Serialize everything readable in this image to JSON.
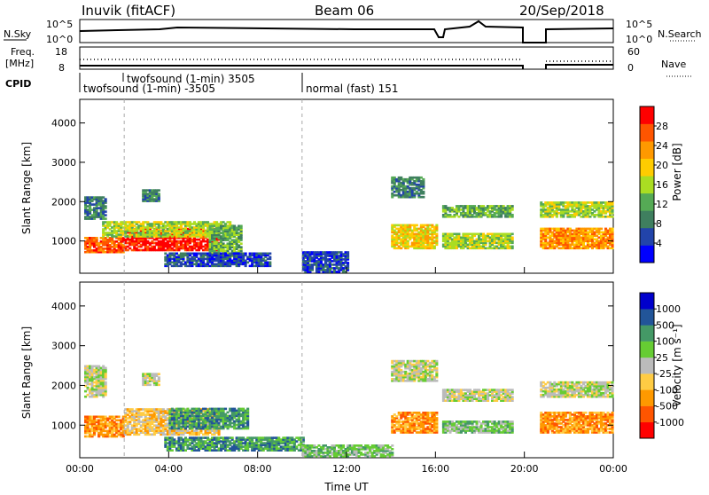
{
  "header": {
    "station": "Inuvik (fitACF)",
    "beam": "Beam 06",
    "date": "20/Sep/2018"
  },
  "mini_panels": {
    "nsky_label": "N.Sky",
    "nsky_ticks": [
      "10^5",
      "10^0"
    ],
    "nsearch_label": "N.Search",
    "freq_label_1": "Freq.",
    "freq_label_2": "[MHz]",
    "freq_ticks": [
      "18",
      "8"
    ],
    "nave_ticks": [
      "60",
      "0"
    ],
    "nave_label": "Nave",
    "cpid_label": "CPID",
    "cpid_entries": [
      "twofsound (1-min) -3505",
      "twofsound (1-min) 3505",
      "normal (fast) 151"
    ]
  },
  "colors": {
    "power": [
      "#0000ff",
      "#2244aa",
      "#3f7f5f",
      "#55aa55",
      "#aadd22",
      "#ffcc00",
      "#ff9900",
      "#ff5500",
      "#ff0000"
    ],
    "velocity": [
      "#ff0000",
      "#ff5500",
      "#ff9900",
      "#ffcc44",
      "#bbbbbb",
      "#66cc33",
      "#449966",
      "#225599",
      "#0000cc"
    ]
  },
  "chart_data": [
    {
      "type": "heatmap",
      "title": "Power",
      "ylabel": "Slant Range [km]",
      "xlabel": "",
      "x_ticks": [
        "00:00",
        "04:00",
        "08:00",
        "12:00",
        "16:00",
        "20:00",
        "00:00"
      ],
      "xlim_hours": [
        0,
        24
      ],
      "y_ticks": [
        1000,
        2000,
        3000,
        4000
      ],
      "ylim": [
        180,
        4600
      ],
      "colorbar_label": "Power [dB]",
      "colorbar_ticks": [
        "4",
        "8",
        "12",
        "16",
        "20",
        "24",
        "28"
      ],
      "regions": [
        {
          "t0": 0.2,
          "t1": 2.0,
          "r0": 700,
          "r1": 1100,
          "level": 7
        },
        {
          "t0": 2.0,
          "t1": 6.2,
          "r0": 750,
          "r1": 1300,
          "level": 8
        },
        {
          "t0": 1.0,
          "t1": 6.8,
          "r0": 1100,
          "r1": 1500,
          "level": 4
        },
        {
          "t0": 0.2,
          "t1": 1.2,
          "r0": 1550,
          "r1": 2100,
          "level": 2
        },
        {
          "t0": 2.8,
          "t1": 3.6,
          "r0": 2000,
          "r1": 2300,
          "level": 2
        },
        {
          "t0": 5.8,
          "t1": 7.2,
          "r0": 600,
          "r1": 1400,
          "level": 3
        },
        {
          "t0": 3.8,
          "t1": 8.5,
          "r0": 350,
          "r1": 700,
          "level": 1
        },
        {
          "t0": 14.0,
          "t1": 15.4,
          "r0": 2100,
          "r1": 2600,
          "level": 2
        },
        {
          "t0": 14.0,
          "t1": 16.0,
          "r0": 800,
          "r1": 1400,
          "level": 5
        },
        {
          "t0": 16.3,
          "t1": 19.5,
          "r0": 1600,
          "r1": 1900,
          "level": 3
        },
        {
          "t0": 16.3,
          "t1": 19.5,
          "r0": 800,
          "r1": 1200,
          "level": 4
        },
        {
          "t0": 20.7,
          "t1": 24.0,
          "r0": 1600,
          "r1": 2000,
          "level": 4
        },
        {
          "t0": 20.7,
          "t1": 24.0,
          "r0": 800,
          "r1": 1300,
          "level": 6
        },
        {
          "t0": 10.0,
          "t1": 12.0,
          "r0": 200,
          "r1": 700,
          "level": 1
        }
      ]
    },
    {
      "type": "heatmap",
      "title": "Velocity",
      "ylabel": "Slant Range [km]",
      "xlabel": "Time UT",
      "x_ticks": [
        "00:00",
        "04:00",
        "08:00",
        "12:00",
        "16:00",
        "20:00",
        "00:00"
      ],
      "xlim_hours": [
        0,
        24
      ],
      "y_ticks": [
        1000,
        2000,
        3000,
        4000
      ],
      "ylim": [
        180,
        4600
      ],
      "colorbar_label": "Velocity [m s⁻¹]",
      "colorbar_ticks": [
        "-1000",
        "-500",
        "-100",
        "-25",
        "25",
        "100",
        "500",
        "1000"
      ],
      "regions": [
        {
          "t0": 0.2,
          "t1": 2.0,
          "r0": 700,
          "r1": 1200,
          "level": 2
        },
        {
          "t0": 2.0,
          "t1": 6.2,
          "r0": 750,
          "r1": 1400,
          "level": 3
        },
        {
          "t0": 4.0,
          "t1": 7.5,
          "r0": 900,
          "r1": 1400,
          "level": 6
        },
        {
          "t0": 0.2,
          "t1": 1.2,
          "r0": 1700,
          "r1": 2500,
          "level": 4
        },
        {
          "t0": 2.8,
          "t1": 3.6,
          "r0": 2000,
          "r1": 2300,
          "level": 4
        },
        {
          "t0": 3.8,
          "t1": 10.0,
          "r0": 350,
          "r1": 700,
          "level": 6
        },
        {
          "t0": 10.0,
          "t1": 14.0,
          "r0": 200,
          "r1": 500,
          "level": 5
        },
        {
          "t0": 14.0,
          "t1": 16.0,
          "r0": 2100,
          "r1": 2600,
          "level": 4
        },
        {
          "t0": 14.0,
          "t1": 16.0,
          "r0": 800,
          "r1": 1300,
          "level": 2
        },
        {
          "t0": 16.3,
          "t1": 19.5,
          "r0": 1600,
          "r1": 1900,
          "level": 4
        },
        {
          "t0": 16.3,
          "t1": 19.5,
          "r0": 800,
          "r1": 1100,
          "level": 5
        },
        {
          "t0": 20.7,
          "t1": 24.0,
          "r0": 1700,
          "r1": 2100,
          "level": 4
        },
        {
          "t0": 20.7,
          "t1": 24.0,
          "r0": 800,
          "r1": 1300,
          "level": 2
        }
      ]
    }
  ]
}
